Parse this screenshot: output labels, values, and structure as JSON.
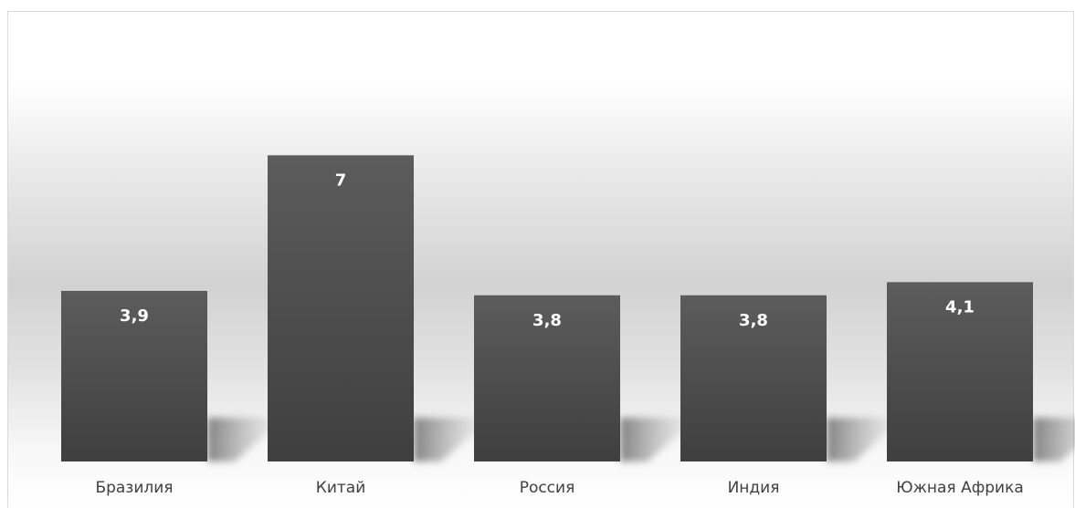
{
  "chart_data": {
    "type": "bar",
    "categories": [
      "Бразилия",
      "Китай",
      "Россия",
      "Индия",
      "Южная Африка"
    ],
    "values": [
      3.9,
      7,
      3.8,
      3.8,
      4.1
    ],
    "value_labels": [
      "3,9",
      "7",
      "3,8",
      "3,8",
      "4,1"
    ],
    "title": "",
    "xlabel": "",
    "ylabel": "",
    "ylim": [
      0,
      9.8
    ],
    "grid": false,
    "legend": "none",
    "colors": {
      "bar_top": "#5c5c5c",
      "bar_bottom": "#3f3f3f",
      "value_label": "#ffffff",
      "category_label": "#404040"
    }
  }
}
